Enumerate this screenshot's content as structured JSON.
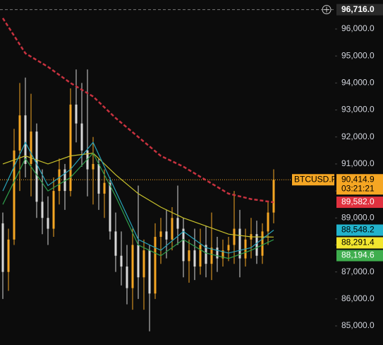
{
  "chart_data": {
    "type": "candlestick",
    "symbol": "BTCUSD.P",
    "countdown": "03:21:21",
    "ylim": [
      84293,
      97074
    ],
    "xlim": [
      -0.5,
      58.875
    ],
    "yticks": [
      {
        "value": 85000,
        "label": "85,000.0"
      },
      {
        "value": 86000,
        "label": "86,000.0"
      },
      {
        "value": 87000,
        "label": "87,000.0"
      },
      {
        "value": 88000,
        "label": "88,000.0"
      },
      {
        "value": 89000,
        "label": "89,000.0"
      },
      {
        "value": 90000,
        "label": "90,000.0"
      },
      {
        "value": 91000,
        "label": "91,000.0"
      },
      {
        "value": 92000,
        "label": "92,000.0"
      },
      {
        "value": 93000,
        "label": "93,000.0"
      },
      {
        "value": 94000,
        "label": "94,000.0"
      },
      {
        "value": 95000,
        "label": "95,000.0"
      },
      {
        "value": 96000,
        "label": "96,000.0"
      }
    ],
    "candles": {
      "up_color": "#f5a623",
      "down_color": "#d8d8d8",
      "open": [
        88800,
        87000,
        88200,
        91500,
        92800,
        91000,
        92200,
        89600,
        89000,
        88600,
        90000,
        90800,
        90000,
        93200,
        92500,
        91500,
        90800,
        91000,
        89900,
        90300,
        88500,
        87600,
        87200,
        86400,
        88000,
        86800,
        87800,
        86200,
        88300,
        88500,
        88200,
        89000,
        88600,
        87400,
        87800,
        87200,
        88000,
        87300,
        87900,
        87500,
        87800,
        88000,
        88600,
        87500,
        88200,
        88400,
        87600,
        88500,
        89200
      ],
      "high": [
        89200,
        88600,
        92300,
        94000,
        94200,
        93600,
        92500,
        90800,
        89800,
        90500,
        91200,
        91000,
        93800,
        94500,
        94000,
        94500,
        92000,
        91200,
        90800,
        90500,
        89200,
        88500,
        88000,
        88600,
        90200,
        88200,
        88000,
        88800,
        89000,
        89300,
        89400,
        90200,
        89000,
        88200,
        88600,
        88600,
        88700,
        89200,
        88300,
        88200,
        88300,
        90000,
        89300,
        88600,
        89000,
        88900,
        88800,
        89600,
        90800
      ],
      "low": [
        86000,
        86300,
        88000,
        90000,
        90500,
        89800,
        89000,
        88400,
        88000,
        88300,
        89500,
        89300,
        89800,
        91800,
        90900,
        89800,
        89500,
        89300,
        89000,
        88200,
        87000,
        86500,
        85800,
        85600,
        86000,
        85600,
        84800,
        86000,
        87300,
        87500,
        87800,
        88000,
        86800,
        86600,
        86700,
        86900,
        86800,
        86700,
        87000,
        87200,
        87400,
        87300,
        86800,
        87200,
        87500,
        87300,
        87300,
        88000,
        88800
      ],
      "close": [
        87000,
        88200,
        91500,
        92800,
        91000,
        92200,
        89600,
        89000,
        88600,
        90000,
        90800,
        90000,
        93200,
        92500,
        91500,
        90800,
        91000,
        89900,
        90300,
        88500,
        87600,
        87200,
        86400,
        88000,
        86800,
        87800,
        86200,
        88300,
        88500,
        88200,
        89000,
        88600,
        87400,
        87800,
        87200,
        88000,
        87300,
        87900,
        87500,
        87800,
        88000,
        88600,
        87500,
        88200,
        88400,
        87600,
        88500,
        89200,
        90414.9
      ]
    },
    "ma": [
      {
        "color": "#c8323f",
        "style": "dashed",
        "x": [
          0,
          4,
          8,
          12,
          16,
          20,
          24,
          28,
          32,
          36,
          40,
          44,
          48
        ],
        "values": [
          96400,
          95100,
          94600,
          94000,
          93500,
          92700,
          92000,
          91300,
          90900,
          90400,
          89900,
          89700,
          89582
        ]
      },
      {
        "color": "#c9c22c",
        "style": "solid",
        "x": [
          0,
          4,
          8,
          12,
          16,
          20,
          24,
          28,
          32,
          36,
          40,
          44,
          48
        ],
        "values": [
          91000,
          91300,
          91000,
          91300,
          91400,
          90600,
          89900,
          89400,
          89000,
          88700,
          88400,
          88300,
          88291.4
        ]
      },
      {
        "color": "#27a3b8",
        "style": "solid",
        "x": [
          0,
          4,
          8,
          12,
          16,
          20,
          24,
          28,
          32,
          36,
          40,
          44,
          48
        ],
        "values": [
          90000,
          91800,
          90200,
          90800,
          91800,
          90000,
          88200,
          87800,
          88500,
          87900,
          87700,
          87900,
          88548.2
        ]
      },
      {
        "color": "#2f9e4c",
        "style": "solid",
        "x": [
          0,
          4,
          8,
          12,
          16,
          20,
          24,
          28,
          32,
          36,
          40,
          44,
          48
        ],
        "values": [
          89500,
          91200,
          90000,
          90500,
          91400,
          89800,
          88000,
          87600,
          88200,
          87700,
          87500,
          87800,
          88194.6
        ]
      }
    ],
    "last": {
      "value": 90414.9,
      "label": "90,414.9",
      "color": "#f5a623"
    },
    "markers": [
      {
        "value": 89582.0,
        "label": "89,582.0",
        "color": "#e0313f",
        "text_color": "#ffffff"
      },
      {
        "value": 88548.2,
        "label": "88,548.2",
        "color": "#22b3cc",
        "text_color": "#000000"
      },
      {
        "value": 88291.4,
        "label": "88,291.4",
        "color": "#f2e62e",
        "text_color": "#000000"
      },
      {
        "value": 88194.6,
        "label": "88,194.6",
        "color": "#3fae4e",
        "text_color": "#ffffff"
      }
    ],
    "crosshair": {
      "value": 96716.0,
      "label": "96,716.0"
    }
  }
}
